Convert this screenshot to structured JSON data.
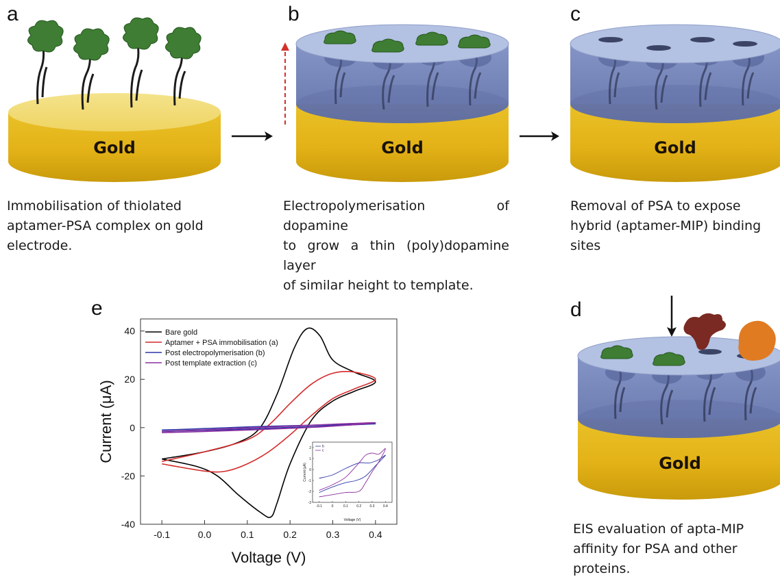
{
  "panels": {
    "a": {
      "letter": "a",
      "caption_lines": [
        "Immobilisation of thiolated",
        "aptamer-PSA complex on gold",
        "electrode."
      ]
    },
    "b": {
      "letter": "b",
      "caption_lines": [
        "Electropolymerisation of dopamine",
        "to grow a thin (poly)dopamine layer",
        "of similar height to template."
      ]
    },
    "c": {
      "letter": "c",
      "caption_lines": [
        "Removal of PSA to expose",
        "hybrid (aptamer-MIP) binding",
        "sites"
      ]
    },
    "d": {
      "letter": "d",
      "caption_lines": [
        "EIS evaluation of apta-MIP",
        "affinity for PSA and other",
        "proteins."
      ]
    },
    "e": {
      "letter": "e"
    }
  },
  "gold_label": "Gold",
  "colors": {
    "gold": "#e6b81c",
    "gold_dark": "#b98a08",
    "polymer": "#6b7db3",
    "polymer_top": "#aab8dc",
    "protein": "#3e7d33",
    "protein_dark_red": "#7a2a22",
    "protein_orange": "#e07b22",
    "arrow_red": "#d4302a"
  },
  "chart_data": {
    "type": "line",
    "xlabel": "Voltage (V)",
    "ylabel": "Current (μA)",
    "xlim": [
      -0.15,
      0.45
    ],
    "ylim": [
      -40,
      45
    ],
    "xticks": [
      "-0.1",
      "0.0",
      "0.1",
      "0.2",
      "0.3",
      "0.4"
    ],
    "yticks": [
      "-40",
      "-20",
      "0",
      "20",
      "40"
    ],
    "legend_position": "top-left",
    "series": [
      {
        "name": "Bare gold",
        "color": "#000000",
        "x": [
          -0.1,
          0.0,
          0.08,
          0.13,
          0.17,
          0.21,
          0.24,
          0.27,
          0.3,
          0.35,
          0.4,
          0.35,
          0.3,
          0.25,
          0.2,
          0.17,
          0.155,
          0.13,
          0.08,
          0.03,
          -0.02,
          -0.1
        ],
        "y": [
          -13,
          -10,
          -6,
          0,
          14,
          33,
          41,
          38,
          28,
          23,
          19,
          15,
          11,
          3,
          -15,
          -31,
          -37,
          -35,
          -28,
          -20,
          -16,
          -13
        ]
      },
      {
        "name": "Aptamer + PSA immobilisation (a)",
        "color": "#d42a2a",
        "x": [
          -0.1,
          0.0,
          0.1,
          0.15,
          0.2,
          0.25,
          0.3,
          0.35,
          0.4,
          0.35,
          0.3,
          0.25,
          0.2,
          0.15,
          0.1,
          0.05,
          0.0,
          -0.1
        ],
        "y": [
          -14,
          -10,
          -5,
          1,
          10,
          18,
          22.5,
          23,
          20,
          16,
          12,
          5,
          -3,
          -10,
          -15,
          -18,
          -18,
          -15
        ]
      },
      {
        "name": "Post electropolymerisation (b)",
        "color": "#2d36a8",
        "x": [
          -0.1,
          0.0,
          0.1,
          0.2,
          0.3,
          0.4,
          0.3,
          0.2,
          0.1,
          0.0,
          -0.1
        ],
        "y": [
          -1,
          -0.4,
          0.3,
          0.8,
          1.2,
          1.6,
          0.8,
          0.1,
          -0.6,
          -1.1,
          -1.6
        ]
      },
      {
        "name": "Post template extraction (c)",
        "color": "#8c2fa0",
        "x": [
          -0.1,
          0.0,
          0.1,
          0.2,
          0.3,
          0.4,
          0.3,
          0.2,
          0.1,
          0.0,
          -0.1
        ],
        "y": [
          -1.5,
          -0.9,
          -0.1,
          0.6,
          1.4,
          2.0,
          0.6,
          -0.3,
          -1.0,
          -1.6,
          -2.1
        ]
      }
    ],
    "inset": {
      "xlabel": "Voltage (V)",
      "ylabel": "Current (μA)",
      "xticks": [
        "-0.1",
        "0",
        "0.1",
        "0.2",
        "0.3",
        "0.4"
      ],
      "yticks": [
        "-3",
        "-2",
        "-1",
        "0",
        "1",
        "2"
      ],
      "xlim": [
        -0.15,
        0.45
      ],
      "ylim": [
        -3,
        2.5
      ],
      "legend": [
        "b",
        "c"
      ],
      "series": [
        {
          "name": "b",
          "color": "#2d36a8",
          "x": [
            -0.1,
            0.0,
            0.1,
            0.2,
            0.28,
            0.35,
            0.4,
            0.33,
            0.25,
            0.18,
            0.1,
            0.0,
            -0.1
          ],
          "y": [
            -0.8,
            -0.5,
            0.1,
            0.6,
            0.6,
            0.9,
            1.3,
            0.4,
            -0.6,
            -1.0,
            -1.2,
            -1.6,
            -2.1
          ]
        },
        {
          "name": "c",
          "color": "#8c2fa0",
          "x": [
            -0.1,
            0.0,
            0.1,
            0.2,
            0.25,
            0.3,
            0.35,
            0.4,
            0.35,
            0.3,
            0.25,
            0.2,
            0.1,
            0.0,
            -0.1
          ],
          "y": [
            -1.9,
            -1.4,
            -0.7,
            0.6,
            1.3,
            1.5,
            1.4,
            1.9,
            0.7,
            -0.2,
            -1.2,
            -2.0,
            -2.1,
            -2.3,
            -2.5
          ]
        }
      ]
    }
  }
}
